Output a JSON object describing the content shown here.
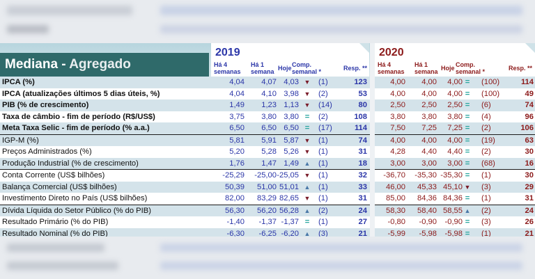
{
  "header": {
    "title_main": "Mediana - ",
    "title_sub": "Agregado",
    "year_2019": "2019",
    "year_2020": "2020",
    "col_4w_a": "Há 4",
    "col_4w_b": "semanas",
    "col_1w_a": "Há 1",
    "col_1w_b": "semana",
    "col_hoje": "Hoje",
    "col_comp_a": "Comp.",
    "col_comp_b": "semanal *",
    "col_resp": "Resp. **"
  },
  "colors": {
    "blue": "#2b36a8",
    "red": "#8c1a1a",
    "arrow_down": "#7a1c2a",
    "arrow_up": "#4a78a8",
    "equal": "#2aa6a0",
    "header_band": "#2f6a6a"
  },
  "rows": [
    {
      "label": "IPCA (%)",
      "v19": [
        "4,04",
        "4,07",
        "4,03"
      ],
      "s19": "down",
      "c19": "(1)",
      "r19": "123",
      "v20": [
        "4,00",
        "4,00",
        "4,00"
      ],
      "s20": "eq",
      "c20": "(100)",
      "r20": "114"
    },
    {
      "label": "IPCA (atualizações últimos 5 dias úteis, %)",
      "v19": [
        "4,04",
        "4,10",
        "3,98"
      ],
      "s19": "down",
      "c19": "(2)",
      "r19": "53",
      "v20": [
        "4,00",
        "4,00",
        "4,00"
      ],
      "s20": "eq",
      "c20": "(100)",
      "r20": "49"
    },
    {
      "label": "PIB (% de crescimento)",
      "v19": [
        "1,49",
        "1,23",
        "1,13"
      ],
      "s19": "down",
      "c19": "(14)",
      "r19": "80",
      "v20": [
        "2,50",
        "2,50",
        "2,50"
      ],
      "s20": "eq",
      "c20": "(6)",
      "r20": "74"
    },
    {
      "label": "Taxa de câmbio - fim de período (R$/US$)",
      "v19": [
        "3,75",
        "3,80",
        "3,80"
      ],
      "s19": "eq",
      "c19": "(2)",
      "r19": "108",
      "v20": [
        "3,80",
        "3,80",
        "3,80"
      ],
      "s20": "eq",
      "c20": "(4)",
      "r20": "96"
    },
    {
      "label": "Meta Taxa Selic - fim de período (% a.a.)",
      "v19": [
        "6,50",
        "6,50",
        "6,50"
      ],
      "s19": "eq",
      "c19": "(17)",
      "r19": "114",
      "v20": [
        "7,50",
        "7,25",
        "7,25"
      ],
      "s20": "eq",
      "c20": "(2)",
      "r20": "106"
    },
    {
      "label": "IGP-M (%)",
      "v19": [
        "5,81",
        "5,91",
        "5,87"
      ],
      "s19": "down",
      "c19": "(1)",
      "r19": "74",
      "v20": [
        "4,00",
        "4,00",
        "4,00"
      ],
      "s20": "eq",
      "c20": "(19)",
      "r20": "63"
    },
    {
      "label": "Preços Administrados (%)",
      "v19": [
        "5,20",
        "5,28",
        "5,26"
      ],
      "s19": "down",
      "c19": "(1)",
      "r19": "31",
      "v20": [
        "4,28",
        "4,40",
        "4,40"
      ],
      "s20": "eq",
      "c20": "(2)",
      "r20": "30"
    },
    {
      "label": "Produção Industrial (% de crescimento)",
      "v19": [
        "1,76",
        "1,47",
        "1,49"
      ],
      "s19": "up",
      "c19": "(1)",
      "r19": "18",
      "v20": [
        "3,00",
        "3,00",
        "3,00"
      ],
      "s20": "eq",
      "c20": "(68)",
      "r20": "16"
    },
    {
      "label": "Conta Corrente (US$ bilhões)",
      "v19": [
        "-25,29",
        "-25,00",
        "-25,05"
      ],
      "s19": "down",
      "c19": "(1)",
      "r19": "32",
      "v20": [
        "-36,70",
        "-35,30",
        "-35,30"
      ],
      "s20": "eq",
      "c20": "(1)",
      "r20": "30"
    },
    {
      "label": "Balança Comercial (US$ bilhões)",
      "v19": [
        "50,39",
        "51,00",
        "51,01"
      ],
      "s19": "up",
      "c19": "(1)",
      "r19": "33",
      "v20": [
        "46,00",
        "45,33",
        "45,10"
      ],
      "s20": "down",
      "c20": "(3)",
      "r20": "29"
    },
    {
      "label": "Investimento Direto no País (US$ bilhões)",
      "v19": [
        "82,00",
        "83,29",
        "82,65"
      ],
      "s19": "down",
      "c19": "(1)",
      "r19": "31",
      "v20": [
        "85,00",
        "84,36",
        "84,36"
      ],
      "s20": "eq",
      "c20": "(1)",
      "r20": "31"
    },
    {
      "label": "Dívida Líquida do Setor Público (% do PIB)",
      "v19": [
        "56,30",
        "56,20",
        "56,28"
      ],
      "s19": "up",
      "c19": "(2)",
      "r19": "24",
      "v20": [
        "58,30",
        "58,40",
        "58,55"
      ],
      "s20": "up",
      "c20": "(2)",
      "r20": "24"
    },
    {
      "label": "Resultado Primário (% do PIB)",
      "v19": [
        "-1,40",
        "-1,37",
        "-1,37"
      ],
      "s19": "eq",
      "c19": "(1)",
      "r19": "27",
      "v20": [
        "-0,80",
        "-0,90",
        "-0,90"
      ],
      "s20": "eq",
      "c20": "(3)",
      "r20": "26"
    },
    {
      "label": "Resultado Nominal (% do PIB)",
      "v19": [
        "-6,30",
        "-6,25",
        "-6,20"
      ],
      "s19": "up",
      "c19": "(3)",
      "r19": "21",
      "v20": [
        "-5,99",
        "-5,98",
        "-5,98"
      ],
      "s20": "eq",
      "c20": "(1)",
      "r20": "21"
    }
  ]
}
